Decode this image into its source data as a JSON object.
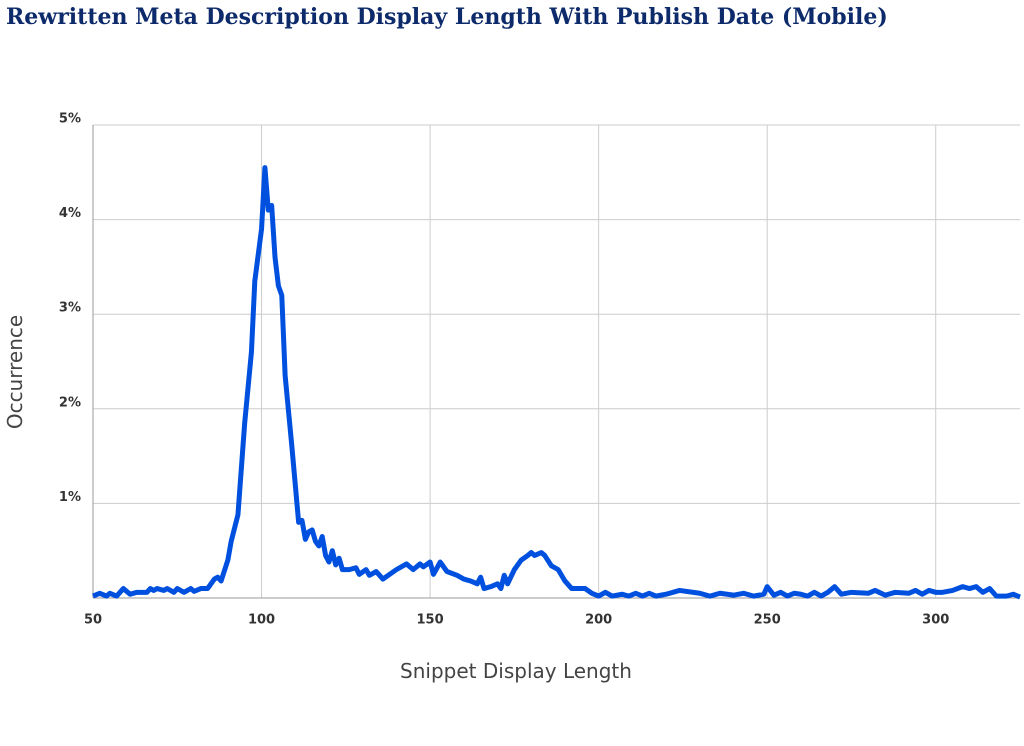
{
  "chart_data": {
    "type": "line",
    "title": "Rewritten Meta Description Display Length With Publish Date (Mobile)",
    "x_label": "Snippet Display Length",
    "y_label": "Occurrence",
    "xlim": [
      50,
      325
    ],
    "ylim": [
      0,
      5
    ],
    "xticks": [
      50,
      100,
      150,
      200,
      250,
      300
    ],
    "yticks": [
      {
        "value": 1,
        "label": "1%"
      },
      {
        "value": 2,
        "label": "2%"
      },
      {
        "value": 3,
        "label": "3%"
      },
      {
        "value": 4,
        "label": "4%"
      },
      {
        "value": 5,
        "label": "5%"
      }
    ],
    "grid": true,
    "series": [
      {
        "color": "#0050e0",
        "x": [
          50,
          52,
          54,
          55,
          57,
          59,
          61,
          63,
          66,
          67,
          68,
          69,
          71,
          72,
          74,
          75,
          77,
          79,
          80,
          82,
          84,
          86,
          87,
          88,
          90,
          91,
          93,
          95,
          97,
          98,
          100,
          101,
          102,
          103,
          104,
          105,
          106,
          107,
          109,
          111,
          112,
          113,
          114,
          115,
          116,
          117,
          118,
          119,
          120,
          121,
          122,
          123,
          124,
          126,
          128,
          129,
          131,
          132,
          134,
          136,
          140,
          143,
          145,
          147,
          148,
          150,
          151,
          153,
          155,
          158,
          160,
          162,
          164,
          165,
          166,
          168,
          170,
          171,
          172,
          173,
          175,
          177,
          179,
          180,
          181,
          183,
          184,
          186,
          188,
          190,
          192,
          196,
          198,
          200,
          202,
          204,
          207,
          209,
          211,
          213,
          215,
          217,
          220,
          224,
          230,
          233,
          236,
          240,
          243,
          246,
          249,
          250,
          252,
          254,
          256,
          258,
          260,
          262,
          264,
          266,
          268,
          270,
          272,
          275,
          280,
          282,
          285,
          288,
          292,
          294,
          296,
          298,
          300,
          302,
          305,
          308,
          310,
          312,
          314,
          316,
          318,
          321,
          323,
          325
        ],
        "values": [
          0.02,
          0.05,
          0.02,
          0.05,
          0.02,
          0.1,
          0.04,
          0.06,
          0.06,
          0.1,
          0.08,
          0.1,
          0.08,
          0.1,
          0.06,
          0.1,
          0.06,
          0.1,
          0.07,
          0.1,
          0.1,
          0.2,
          0.22,
          0.18,
          0.4,
          0.6,
          0.88,
          1.85,
          2.6,
          3.35,
          3.9,
          4.55,
          4.1,
          4.15,
          3.6,
          3.3,
          3.2,
          2.35,
          1.6,
          0.8,
          0.82,
          0.62,
          0.7,
          0.72,
          0.6,
          0.55,
          0.65,
          0.45,
          0.38,
          0.5,
          0.35,
          0.42,
          0.3,
          0.3,
          0.32,
          0.25,
          0.3,
          0.24,
          0.28,
          0.2,
          0.3,
          0.36,
          0.3,
          0.36,
          0.33,
          0.38,
          0.25,
          0.38,
          0.28,
          0.24,
          0.2,
          0.18,
          0.15,
          0.22,
          0.1,
          0.12,
          0.15,
          0.1,
          0.24,
          0.15,
          0.3,
          0.4,
          0.45,
          0.48,
          0.45,
          0.48,
          0.45,
          0.34,
          0.3,
          0.18,
          0.1,
          0.1,
          0.05,
          0.02,
          0.06,
          0.02,
          0.04,
          0.02,
          0.05,
          0.02,
          0.05,
          0.02,
          0.04,
          0.08,
          0.05,
          0.02,
          0.05,
          0.03,
          0.05,
          0.02,
          0.04,
          0.12,
          0.03,
          0.06,
          0.02,
          0.05,
          0.04,
          0.02,
          0.06,
          0.02,
          0.06,
          0.12,
          0.04,
          0.06,
          0.05,
          0.08,
          0.03,
          0.06,
          0.05,
          0.08,
          0.04,
          0.08,
          0.06,
          0.06,
          0.08,
          0.12,
          0.1,
          0.12,
          0.06,
          0.1,
          0.02,
          0.02,
          0.04,
          0.01
        ]
      }
    ]
  }
}
